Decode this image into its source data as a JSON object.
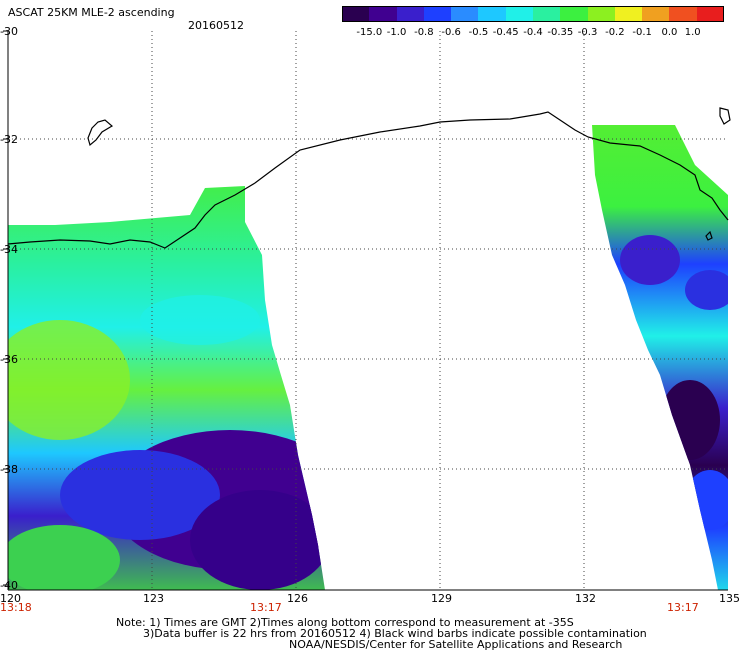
{
  "header": {
    "title": "ASCAT 25KM MLE-2 ascending",
    "date": "20160512"
  },
  "colorbar": {
    "labels": [
      "-15.0",
      "-1.0",
      "-0.8",
      "-0.6",
      "-0.5",
      "-0.45",
      "-0.4",
      "-0.35",
      "-0.3",
      "-0.2",
      "-0.1",
      "0.0",
      "1.0"
    ],
    "colors": [
      "#2a0050",
      "#400090",
      "#3a1fcc",
      "#1e40ff",
      "#2a8cff",
      "#1ec8ff",
      "#20f0e8",
      "#2af0a0",
      "#3cf040",
      "#8cf020",
      "#f0f020",
      "#f0a020",
      "#f05020",
      "#e81e1e"
    ]
  },
  "map": {
    "lat_labels": [
      "-30",
      "-32",
      "-34",
      "-36",
      "-38",
      "-40"
    ],
    "lon_labels": [
      "120",
      "123",
      "126",
      "129",
      "132",
      "135"
    ],
    "time_labels": [
      "13:18",
      "13:17",
      "13:17"
    ]
  },
  "footer": {
    "line1": "Note: 1) Times are GMT 2)Times along bottom correspond to measurement at -35S",
    "line2": "3)Data buffer is 22 hrs from 20160512 4) Black wind barbs indicate possible contamination",
    "line3": "NOAA/NESDIS/Center for Satellite Applications and Research"
  }
}
